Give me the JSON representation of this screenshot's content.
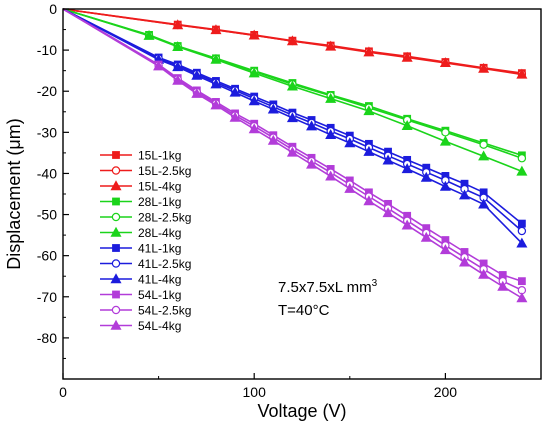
{
  "chart_data": {
    "type": "line",
    "xlabel": "Voltage (V)",
    "ylabel": "Displacement (μm)",
    "xlim": [
      0,
      250
    ],
    "ylim": [
      -90,
      0
    ],
    "xticks": [
      0,
      100,
      200
    ],
    "yticks": [
      0,
      -10,
      -20,
      -30,
      -40,
      -50,
      -60,
      -70,
      -80
    ],
    "grid": false,
    "legend_position": "left",
    "annotations": {
      "line1_base": "7.5x7.5xL mm",
      "line1_sup": "3",
      "line2": "T=40°C"
    },
    "series": [
      {
        "name": "15L-1kg",
        "color": "#ee1c1c",
        "marker": "square",
        "filled": true,
        "x": [
          0,
          60,
          80,
          100,
          120,
          140,
          160,
          180,
          200,
          220,
          240
        ],
        "y": [
          0,
          -3.8,
          -5.0,
          -6.3,
          -7.7,
          -8.9,
          -10.3,
          -11.5,
          -12.9,
          -14.3,
          -15.6
        ]
      },
      {
        "name": "15L-2.5kg",
        "color": "#ee1c1c",
        "marker": "circle",
        "filled": false,
        "x": [
          0,
          60,
          80,
          100,
          120,
          140,
          160,
          180,
          200,
          220,
          240
        ],
        "y": [
          0,
          -3.9,
          -5.1,
          -6.4,
          -7.8,
          -9.0,
          -10.4,
          -11.7,
          -13.0,
          -14.4,
          -15.8
        ]
      },
      {
        "name": "15L-4kg",
        "color": "#ee1c1c",
        "marker": "triangle-up",
        "filled": true,
        "x": [
          0,
          60,
          80,
          100,
          120,
          140,
          160,
          180,
          200,
          220,
          240
        ],
        "y": [
          0,
          -3.9,
          -5.1,
          -6.4,
          -7.8,
          -9.1,
          -10.5,
          -11.8,
          -13.1,
          -14.5,
          -15.9
        ]
      },
      {
        "name": "28L-1kg",
        "color": "#1bd41b",
        "marker": "square",
        "filled": true,
        "x": [
          0,
          45,
          60,
          80,
          100,
          120,
          140,
          160,
          180,
          200,
          220,
          240
        ],
        "y": [
          0,
          -6.3,
          -9.0,
          -12.0,
          -15.0,
          -18.0,
          -20.9,
          -23.6,
          -26.7,
          -29.6,
          -32.6,
          -35.6
        ]
      },
      {
        "name": "28L-2.5kg",
        "color": "#1bd41b",
        "marker": "circle",
        "filled": false,
        "x": [
          0,
          45,
          60,
          80,
          100,
          120,
          140,
          160,
          180,
          200,
          220,
          240
        ],
        "y": [
          0,
          -6.4,
          -9.1,
          -12.1,
          -15.2,
          -18.3,
          -21.1,
          -24.0,
          -27.0,
          -30.0,
          -33.0,
          -36.3
        ]
      },
      {
        "name": "28L-4kg",
        "color": "#1bd41b",
        "marker": "triangle-up",
        "filled": true,
        "x": [
          0,
          45,
          60,
          80,
          100,
          120,
          140,
          160,
          180,
          200,
          220,
          240
        ],
        "y": [
          0,
          -6.5,
          -9.2,
          -12.3,
          -15.6,
          -18.8,
          -21.8,
          -24.8,
          -28.4,
          -32.2,
          -35.8,
          -39.5
        ]
      },
      {
        "name": "41L-1kg",
        "color": "#1c1cdd",
        "marker": "square",
        "filled": true,
        "x": [
          0,
          50,
          60,
          70,
          80,
          90,
          100,
          110,
          120,
          130,
          140,
          150,
          160,
          170,
          180,
          190,
          200,
          210,
          220,
          240
        ],
        "y": [
          0,
          -11.8,
          -13.5,
          -15.5,
          -17.5,
          -19.4,
          -21.3,
          -23.2,
          -25.2,
          -27.0,
          -28.9,
          -30.8,
          -32.8,
          -34.7,
          -36.7,
          -38.6,
          -40.6,
          -42.5,
          -44.6,
          -52.2
        ]
      },
      {
        "name": "41L-2.5kg",
        "color": "#1c1cdd",
        "marker": "circle",
        "filled": false,
        "x": [
          0,
          50,
          60,
          70,
          80,
          90,
          100,
          110,
          120,
          130,
          140,
          150,
          160,
          170,
          180,
          190,
          200,
          210,
          220,
          240
        ],
        "y": [
          0,
          -12.0,
          -13.8,
          -15.8,
          -17.9,
          -19.8,
          -21.8,
          -23.8,
          -25.8,
          -27.7,
          -29.7,
          -31.6,
          -33.7,
          -35.7,
          -37.7,
          -39.7,
          -41.7,
          -43.8,
          -45.9,
          -54.0
        ]
      },
      {
        "name": "41L-4kg",
        "color": "#1c1cdd",
        "marker": "triangle-up",
        "filled": true,
        "x": [
          0,
          50,
          60,
          70,
          80,
          90,
          100,
          110,
          120,
          130,
          140,
          150,
          160,
          170,
          180,
          190,
          200,
          210,
          220,
          240
        ],
        "y": [
          0,
          -12.3,
          -14.1,
          -16.2,
          -18.3,
          -20.3,
          -22.4,
          -24.4,
          -26.5,
          -28.5,
          -30.6,
          -32.6,
          -34.7,
          -36.8,
          -38.9,
          -41.0,
          -43.2,
          -45.3,
          -47.5,
          -57.0
        ]
      },
      {
        "name": "54L-1kg",
        "color": "#b23cd9",
        "marker": "square",
        "filled": true,
        "x": [
          0,
          50,
          60,
          70,
          80,
          90,
          100,
          110,
          120,
          130,
          140,
          150,
          160,
          170,
          180,
          190,
          200,
          210,
          220,
          230,
          240
        ],
        "y": [
          0,
          -13.5,
          -16.8,
          -19.8,
          -22.6,
          -25.4,
          -27.9,
          -30.7,
          -33.5,
          -36.2,
          -38.9,
          -41.7,
          -44.6,
          -47.4,
          -50.3,
          -53.3,
          -56.2,
          -59.1,
          -61.9,
          -64.7,
          -66.2
        ]
      },
      {
        "name": "54L-2.5kg",
        "color": "#b23cd9",
        "marker": "circle",
        "filled": false,
        "x": [
          0,
          50,
          60,
          70,
          80,
          90,
          100,
          110,
          120,
          130,
          140,
          150,
          160,
          170,
          180,
          190,
          200,
          210,
          220,
          230,
          240
        ],
        "y": [
          0,
          -13.7,
          -17.1,
          -20.2,
          -23.0,
          -25.9,
          -28.5,
          -31.3,
          -34.2,
          -37.0,
          -39.8,
          -42.7,
          -45.6,
          -48.5,
          -51.5,
          -54.5,
          -57.5,
          -60.4,
          -63.3,
          -66.2,
          -68.4
        ]
      },
      {
        "name": "54L-4kg",
        "color": "#b23cd9",
        "marker": "triangle-up",
        "filled": true,
        "x": [
          0,
          50,
          60,
          70,
          80,
          90,
          100,
          110,
          120,
          130,
          140,
          150,
          160,
          170,
          180,
          190,
          200,
          210,
          220,
          230,
          240
        ],
        "y": [
          0,
          -13.9,
          -17.4,
          -20.6,
          -23.4,
          -26.4,
          -29.2,
          -32.0,
          -34.9,
          -37.8,
          -40.7,
          -43.7,
          -46.7,
          -49.6,
          -52.6,
          -55.6,
          -58.6,
          -61.6,
          -64.6,
          -67.5,
          -70.3
        ]
      }
    ]
  }
}
